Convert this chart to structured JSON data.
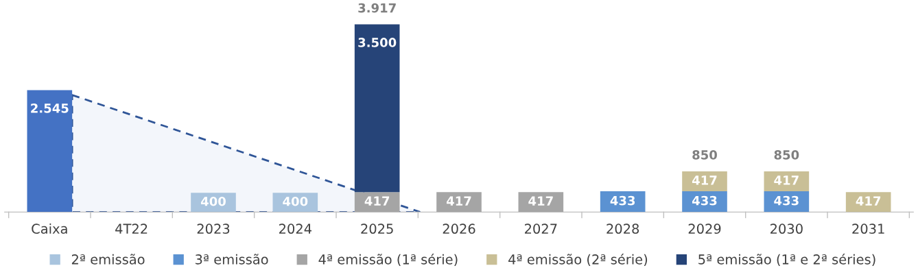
{
  "chart_data": {
    "type": "bar",
    "stacked": true,
    "data_labels": true,
    "legend": "bottom",
    "grid": false,
    "categories": [
      "Caixa",
      "4T22",
      "2023",
      "2024",
      "2025",
      "2026",
      "2027",
      "2028",
      "2029",
      "2030",
      "2031"
    ],
    "series": [
      {
        "color": "#4472c4",
        "values": [
          2545,
          null,
          null,
          null,
          null,
          null,
          null,
          null,
          null,
          null,
          null
        ],
        "value_labels": [
          "2.545",
          null,
          null,
          null,
          null,
          null,
          null,
          null,
          null,
          null,
          null
        ]
      },
      {
        "name": "2ª emissão",
        "color": "#a9c4de",
        "values": [
          null,
          null,
          400,
          400,
          null,
          null,
          null,
          null,
          null,
          null,
          null
        ]
      },
      {
        "name": "3ª emissão",
        "color": "#5b92d2",
        "values": [
          null,
          null,
          null,
          null,
          null,
          null,
          null,
          433,
          433,
          433,
          null
        ]
      },
      {
        "name": "4ª emissão (1ª série)",
        "color": "#a5a5a5",
        "values": [
          null,
          null,
          null,
          null,
          417,
          417,
          417,
          null,
          null,
          null,
          null
        ]
      },
      {
        "name": "4ª emissão (2ª série)",
        "color": "#c9bf96",
        "values": [
          null,
          null,
          null,
          null,
          null,
          null,
          null,
          null,
          417,
          417,
          417
        ]
      },
      {
        "name": "5ª emissão (1ª e 2ª séries)",
        "color": "#264478",
        "values": [
          null,
          null,
          null,
          null,
          3500,
          null,
          null,
          null,
          null,
          null,
          null
        ],
        "value_labels": [
          null,
          null,
          null,
          null,
          "3.500",
          null,
          null,
          null,
          null,
          null,
          null
        ]
      }
    ],
    "totals": [
      null,
      null,
      null,
      null,
      "3.917",
      null,
      null,
      null,
      "850",
      "850",
      null
    ]
  }
}
